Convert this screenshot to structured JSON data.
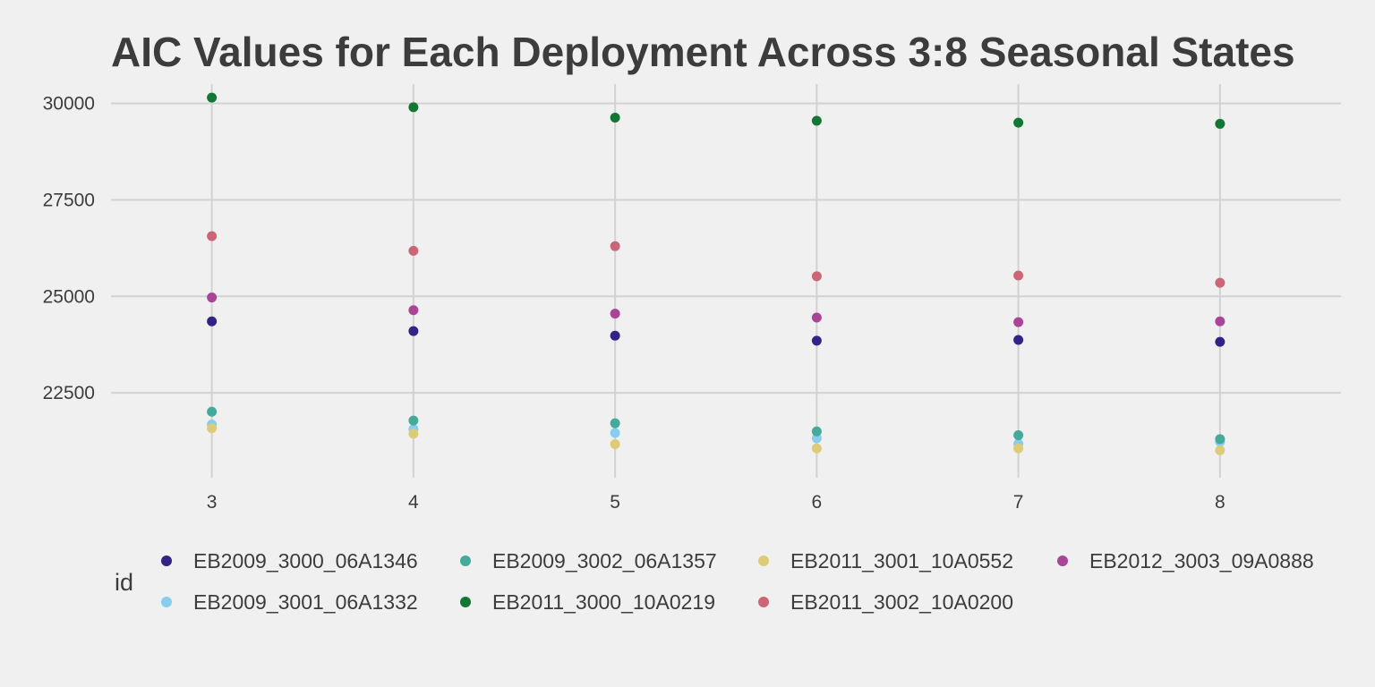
{
  "chart_data": {
    "type": "scatter",
    "title": "AIC Values for Each Deployment Across 3:8 Seasonal States",
    "xlabel": "",
    "ylabel": "",
    "x": [
      3,
      4,
      5,
      6,
      7,
      8
    ],
    "x_ticks": [
      "3",
      "4",
      "5",
      "6",
      "7",
      "8"
    ],
    "y_ticks": [
      "22500",
      "25000",
      "27500",
      "30000"
    ],
    "y_tick_values": [
      22500,
      25000,
      27500,
      30000
    ],
    "xlim": [
      2.5,
      8.6
    ],
    "ylim": [
      20300,
      30500
    ],
    "grid": true,
    "legend_title": "id",
    "legend_position": "bottom",
    "series": [
      {
        "name": "EB2009_3000_06A1346",
        "color": "#332288",
        "values": [
          24350,
          24100,
          23980,
          23850,
          23870,
          23820
        ]
      },
      {
        "name": "EB2009_3001_06A1332",
        "color": "#88ccee",
        "values": [
          21680,
          21560,
          21460,
          21320,
          21180,
          21230
        ]
      },
      {
        "name": "EB2009_3002_06A1357",
        "color": "#44aa99",
        "values": [
          22010,
          21780,
          21710,
          21500,
          21400,
          21300
        ]
      },
      {
        "name": "EB2011_3000_10A0219",
        "color": "#117733",
        "values": [
          30150,
          29900,
          29630,
          29550,
          29500,
          29470
        ]
      },
      {
        "name": "EB2011_3001_10A0552",
        "color": "#ddcc77",
        "values": [
          21580,
          21440,
          21170,
          21060,
          21060,
          21010
        ]
      },
      {
        "name": "EB2011_3002_10A0200",
        "color": "#cc6677",
        "values": [
          26560,
          26180,
          26300,
          25520,
          25540,
          25350
        ]
      },
      {
        "name": "EB2012_3003_09A0888",
        "color": "#aa4499",
        "values": [
          24970,
          24640,
          24550,
          24450,
          24330,
          24350
        ]
      }
    ]
  }
}
